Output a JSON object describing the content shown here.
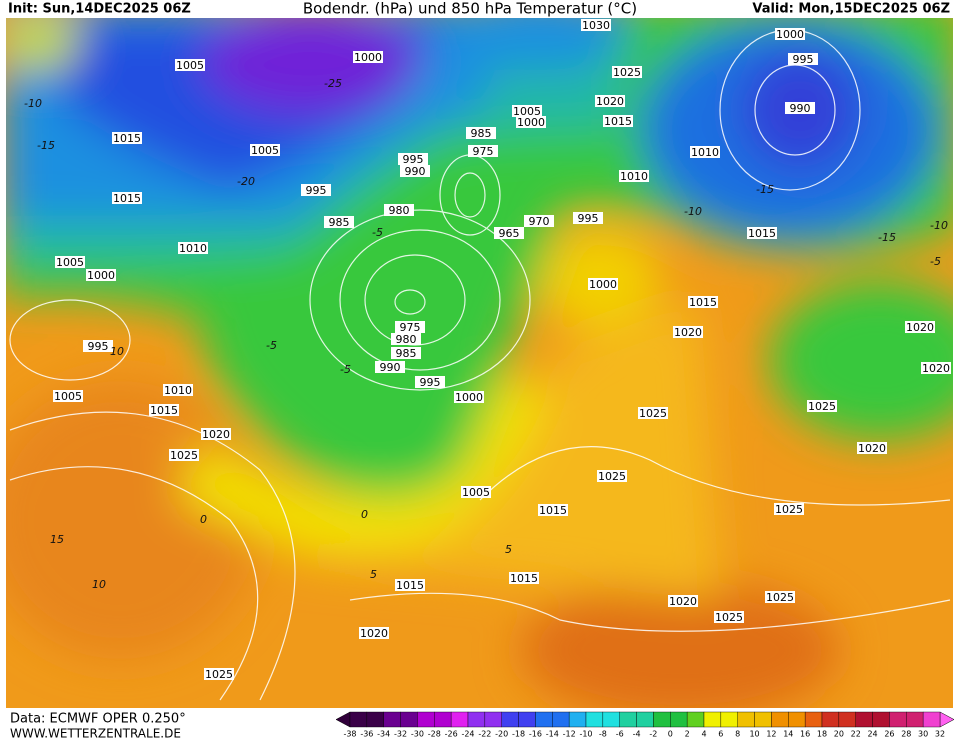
{
  "header": {
    "init": "Init: Sun,14DEC2025 06Z",
    "title": "Bodendr. (hPa) und 850 hPa Temperatur (°C)",
    "valid": "Valid: Mon,15DEC2025 06Z"
  },
  "footer": {
    "source": "Data: ECMWF OPER 0.250°",
    "site": "WWW.WETTERZENTRALE.DE"
  },
  "colorbar": {
    "ticks": [
      -38,
      -36,
      -34,
      -32,
      -30,
      -28,
      -26,
      -24,
      -22,
      -20,
      -18,
      -16,
      -14,
      -12,
      -10,
      -8,
      -6,
      -4,
      -2,
      0,
      2,
      4,
      6,
      8,
      10,
      12,
      14,
      16,
      18,
      20,
      22,
      24,
      26,
      28,
      30,
      32
    ]
  },
  "map": {
    "isobar_labels": [
      "1030",
      "1025",
      "1020",
      "1015",
      "1005",
      "1000",
      "1000",
      "1005",
      "1015",
      "1005",
      "1015",
      "985",
      "975",
      "995",
      "990",
      "995",
      "980",
      "985",
      "970",
      "965",
      "995",
      "1010",
      "1010",
      "1000",
      "995",
      "990",
      "1015",
      "1010",
      "1005",
      "1000",
      "1000",
      "1015",
      "1020",
      "1020",
      "1020",
      "975",
      "980",
      "985",
      "990",
      "995",
      "1000",
      "995",
      "1005",
      "1010",
      "1015",
      "1020",
      "1025",
      "1025",
      "1025",
      "1020",
      "1025",
      "1005",
      "1015",
      "1025",
      "1015",
      "1015",
      "1020",
      "1020",
      "1025",
      "1025",
      "1025"
    ],
    "temperature_labels": [
      "-10",
      "-15",
      "-20",
      "-25",
      "-15",
      "-10",
      "-5",
      "-5",
      "-5",
      "0",
      "5",
      "10",
      "15",
      "10",
      "5",
      "0",
      "-5",
      "-10",
      "-15"
    ]
  }
}
